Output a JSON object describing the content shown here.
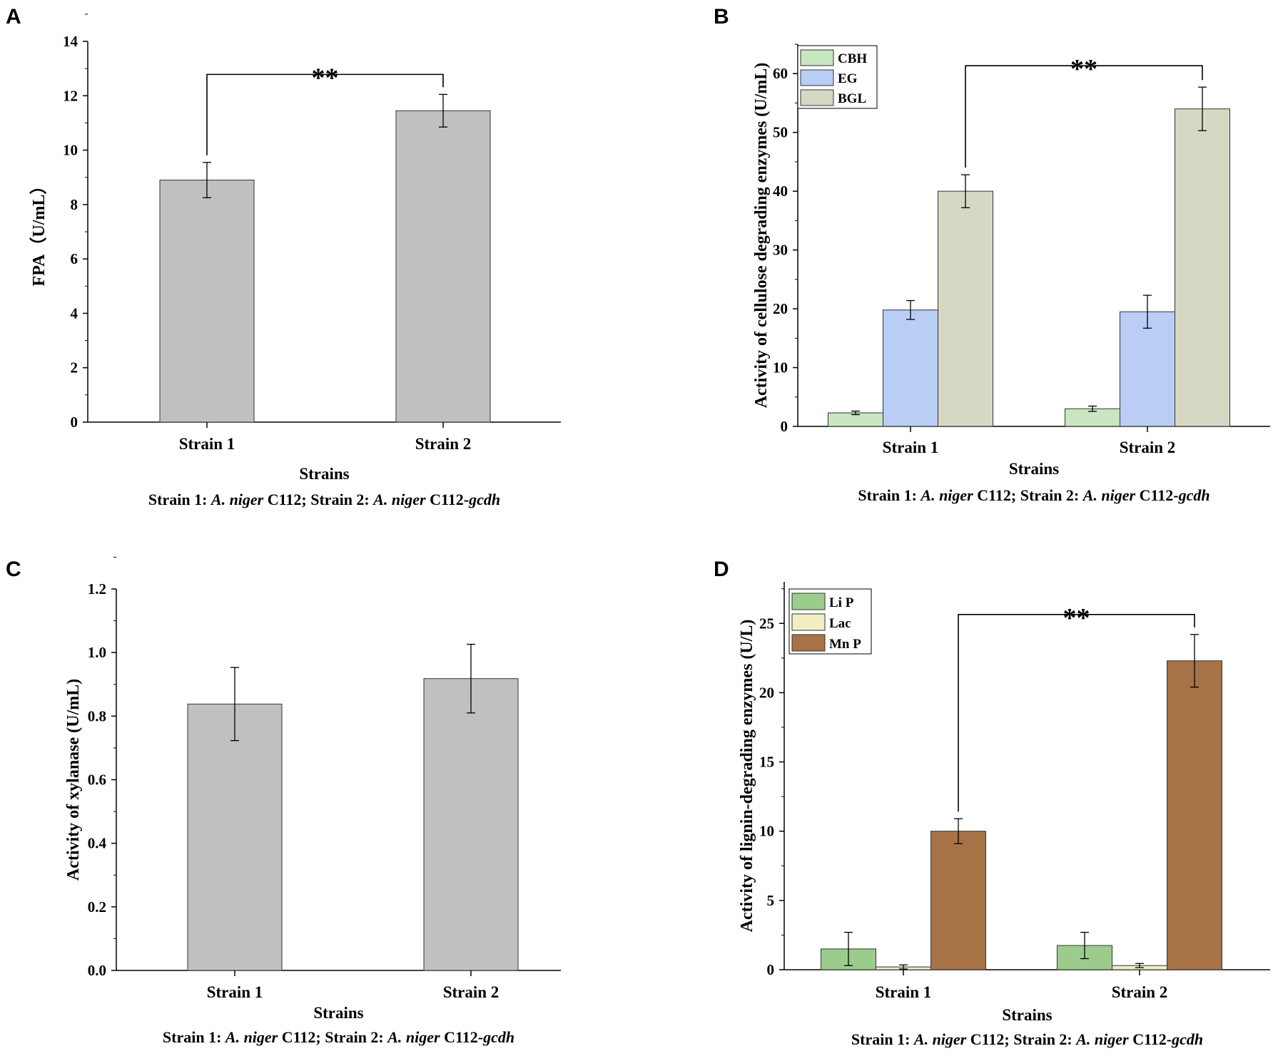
{
  "panel_letters": [
    "A",
    "B",
    "C",
    "D"
  ],
  "chart_data": [
    {
      "id": "A",
      "type": "bar",
      "categories": [
        "Strain 1",
        "Strain 2"
      ],
      "series": [
        {
          "name": "FPA",
          "color": "#c0c0c0",
          "values": [
            8.9,
            11.45
          ],
          "errors": [
            0.65,
            0.6
          ]
        }
      ],
      "ylabel": "FPA（U/mL）",
      "xlabel": "Strains",
      "caption": {
        "s1_pre": "Strain 1: ",
        "s1_it": "A. niger",
        "s1_post": " C112; ",
        "s2_pre": "Strain 2: ",
        "s2_it": "A. niger",
        "s2_post": " C112-",
        "s2_it2": "gcdh"
      },
      "ylim": [
        0,
        14
      ],
      "yticks": [
        0,
        2,
        4,
        6,
        8,
        10,
        12,
        14
      ],
      "significance": "**",
      "legend": []
    },
    {
      "id": "B",
      "type": "bar",
      "categories": [
        "Strain 1",
        "Strain 2"
      ],
      "series": [
        {
          "name": "CBH",
          "color": "#c8e6c0",
          "values": [
            2.3,
            3.0
          ],
          "errors": [
            0.3,
            0.45
          ]
        },
        {
          "name": "EG",
          "color": "#b9cdf5",
          "values": [
            19.8,
            19.5
          ],
          "errors": [
            1.6,
            2.8
          ]
        },
        {
          "name": "BGL",
          "color": "#d6d8c3",
          "values": [
            40.0,
            54.0
          ],
          "errors": [
            2.8,
            3.7
          ]
        }
      ],
      "ylabel": "Activity of cellulose degrading enzymes (U/mL)",
      "xlabel": "Strains",
      "caption": {
        "s1_pre": "Strain 1: ",
        "s1_it": "A. niger",
        "s1_post": " C112; ",
        "s2_pre": "Strain 2: ",
        "s2_it": "A. niger",
        "s2_post": " C112-",
        "s2_it2": "gcdh"
      },
      "ylim": [
        0,
        65
      ],
      "yticks": [
        0,
        10,
        20,
        30,
        40,
        50,
        60
      ],
      "significance": "**",
      "legend": [
        "CBH",
        "EG",
        "BGL"
      ]
    },
    {
      "id": "C",
      "type": "bar",
      "categories": [
        "Strain 1",
        "Strain 2"
      ],
      "series": [
        {
          "name": "Xylanase",
          "color": "#c0c0c0",
          "values": [
            0.838,
            0.918
          ],
          "errors": [
            0.115,
            0.108
          ]
        }
      ],
      "ylabel": "Activity of xylanase (U/mL)",
      "xlabel": "Strains",
      "caption": {
        "s1_pre": "Strain 1: ",
        "s1_it": "A. niger",
        "s1_post": " C112; ",
        "s2_pre": "Strain 2: ",
        "s2_it": "A. niger",
        "s2_post": " C112-",
        "s2_it2": "gcdh"
      },
      "ylim": [
        0,
        1.2
      ],
      "yticks": [
        "0.0",
        "0.2",
        "0.4",
        "0.6",
        "0.8",
        "1.0",
        "1.2"
      ],
      "significance": "",
      "legend": []
    },
    {
      "id": "D",
      "type": "bar",
      "categories": [
        "Strain 1",
        "Strain 2"
      ],
      "series": [
        {
          "name": "Li P",
          "color": "#9ccc8c",
          "values": [
            1.5,
            1.75
          ],
          "errors": [
            1.2,
            0.95
          ]
        },
        {
          "name": "Lac",
          "color": "#f0eec2",
          "values": [
            0.2,
            0.3
          ],
          "errors": [
            0.15,
            0.15
          ]
        },
        {
          "name": "Mn P",
          "color": "#a87247",
          "values": [
            10.0,
            22.3
          ],
          "errors": [
            0.9,
            1.9
          ]
        }
      ],
      "ylabel": "Activity of lignin-degrading enzymes (U/L)",
      "xlabel": "Strains",
      "caption": {
        "s1_pre": "Strain 1: ",
        "s1_it": "A. niger",
        "s1_post": " C112; ",
        "s2_pre": "Strain 2: ",
        "s2_it": "A. niger",
        "s2_post": " C112-",
        "s2_it2": "gcdh"
      },
      "ylim": [
        0,
        28
      ],
      "yticks": [
        0,
        5,
        10,
        15,
        20,
        25
      ],
      "significance": "**",
      "legend": [
        "Li P",
        "Lac",
        "Mn P"
      ]
    }
  ]
}
